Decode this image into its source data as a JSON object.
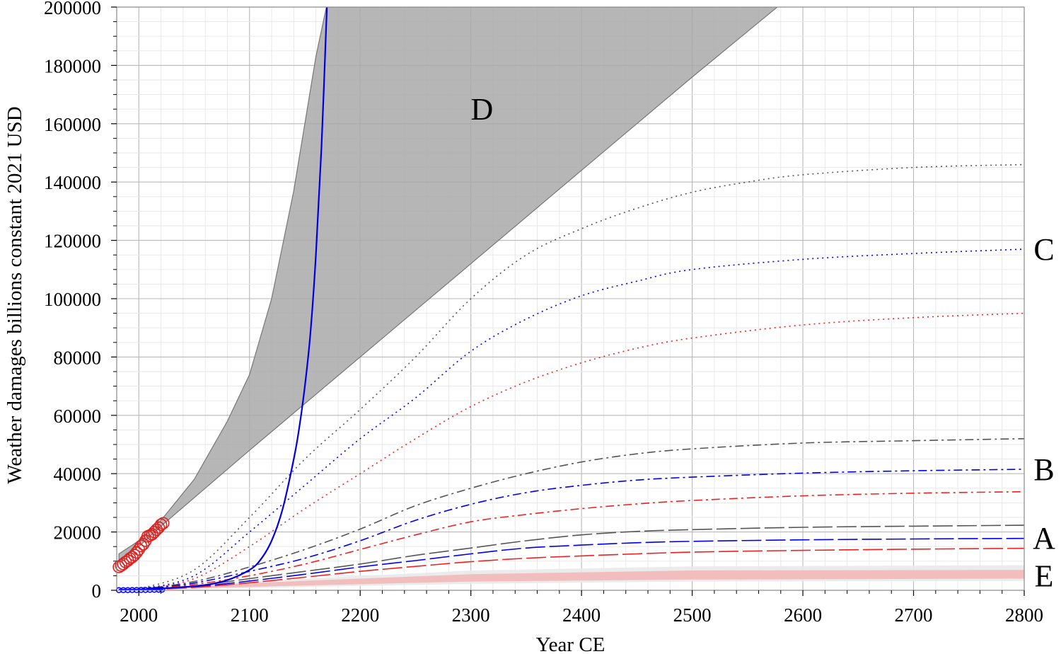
{
  "chart_data": {
    "type": "line",
    "xlabel": "Year CE",
    "ylabel": "Weather damages billions constant 2021 USD",
    "xlim": [
      1980,
      2800
    ],
    "ylim": [
      0,
      200000
    ],
    "x_ticks": [
      2000,
      2100,
      2200,
      2300,
      2400,
      2500,
      2600,
      2700,
      2800
    ],
    "y_ticks": [
      0,
      20000,
      40000,
      60000,
      80000,
      100000,
      120000,
      140000,
      160000,
      180000,
      200000
    ],
    "grid": true,
    "region_labels": [
      {
        "text": "D",
        "x": 2310,
        "y": 165000
      },
      {
        "text": "C",
        "side": "right",
        "y": 117000
      },
      {
        "text": "B",
        "side": "right",
        "y": 41500
      },
      {
        "text": "A",
        "side": "right",
        "y": 18000
      },
      {
        "text": "E",
        "side": "right",
        "y": 5000
      }
    ],
    "bands": [
      {
        "label": "D",
        "color": "#a9a9a9",
        "upper": [
          [
            1982,
            12500
          ],
          [
            2000,
            17000
          ],
          [
            2020,
            24000
          ],
          [
            2050,
            38000
          ],
          [
            2080,
            58000
          ],
          [
            2100,
            74000
          ],
          [
            2120,
            100000
          ],
          [
            2140,
            137000
          ],
          [
            2160,
            183000
          ],
          [
            2170,
            201000
          ]
        ],
        "lower": [
          [
            1982,
            10500
          ],
          [
            2000,
            15000
          ],
          [
            2020,
            22000
          ],
          [
            2100,
            48000
          ],
          [
            2200,
            80000
          ],
          [
            2300,
            112000
          ],
          [
            2400,
            144000
          ],
          [
            2500,
            176000
          ],
          [
            2580,
            201000
          ]
        ]
      },
      {
        "label": "E-outer",
        "color": "#e9e9e9",
        "upper": [
          [
            1982,
            0
          ],
          [
            2100,
            3000
          ],
          [
            2300,
            6800
          ],
          [
            2500,
            8200
          ],
          [
            2800,
            8600
          ]
        ],
        "lower": [
          [
            1982,
            0
          ],
          [
            2100,
            800
          ],
          [
            2300,
            2200
          ],
          [
            2500,
            3000
          ],
          [
            2800,
            3200
          ]
        ]
      },
      {
        "label": "E",
        "color": "#f2b8b8",
        "upper": [
          [
            1982,
            0
          ],
          [
            2100,
            2500
          ],
          [
            2300,
            5500
          ],
          [
            2500,
            6800
          ],
          [
            2800,
            7000
          ]
        ],
        "lower": [
          [
            1982,
            0
          ],
          [
            2100,
            1200
          ],
          [
            2300,
            3000
          ],
          [
            2500,
            3700
          ],
          [
            2800,
            4000
          ]
        ]
      }
    ],
    "series": [
      {
        "color": "#555555",
        "dash": "2,5",
        "points": [
          [
            1982,
            0
          ],
          [
            2000,
            500
          ],
          [
            2050,
            7000
          ],
          [
            2100,
            25000
          ],
          [
            2150,
            45000
          ],
          [
            2200,
            62000
          ],
          [
            2250,
            80000
          ],
          [
            2300,
            100000
          ],
          [
            2350,
            115000
          ],
          [
            2400,
            124000
          ],
          [
            2450,
            131000
          ],
          [
            2500,
            136500
          ],
          [
            2550,
            140000
          ],
          [
            2600,
            142500
          ],
          [
            2700,
            145000
          ],
          [
            2800,
            146000
          ]
        ]
      },
      {
        "color": "#0000ee",
        "dash": "2,5",
        "points": [
          [
            1982,
            0
          ],
          [
            2000,
            400
          ],
          [
            2050,
            5000
          ],
          [
            2100,
            20000
          ],
          [
            2150,
            36000
          ],
          [
            2200,
            52000
          ],
          [
            2250,
            66000
          ],
          [
            2300,
            82000
          ],
          [
            2350,
            93000
          ],
          [
            2400,
            101000
          ],
          [
            2450,
            106000
          ],
          [
            2500,
            110000
          ],
          [
            2600,
            113500
          ],
          [
            2700,
            115500
          ],
          [
            2800,
            117000
          ]
        ]
      },
      {
        "color": "#ee2222",
        "dash": "2,5",
        "points": [
          [
            1982,
            0
          ],
          [
            2000,
            300
          ],
          [
            2050,
            4000
          ],
          [
            2100,
            15000
          ],
          [
            2150,
            28000
          ],
          [
            2200,
            40000
          ],
          [
            2250,
            52000
          ],
          [
            2300,
            63000
          ],
          [
            2350,
            71500
          ],
          [
            2400,
            78000
          ],
          [
            2450,
            83000
          ],
          [
            2500,
            86500
          ],
          [
            2600,
            91000
          ],
          [
            2700,
            93500
          ],
          [
            2800,
            95000
          ]
        ]
      },
      {
        "color": "#555555",
        "dash": "12,5,3,5",
        "points": [
          [
            1982,
            0
          ],
          [
            2000,
            300
          ],
          [
            2050,
            3000
          ],
          [
            2100,
            8000
          ],
          [
            2150,
            14000
          ],
          [
            2200,
            21000
          ],
          [
            2250,
            29000
          ],
          [
            2300,
            35000
          ],
          [
            2350,
            40000
          ],
          [
            2400,
            44000
          ],
          [
            2450,
            46800
          ],
          [
            2500,
            48500
          ],
          [
            2600,
            50500
          ],
          [
            2700,
            51300
          ],
          [
            2800,
            52000
          ]
        ]
      },
      {
        "color": "#0000ee",
        "dash": "12,5,3,5",
        "points": [
          [
            1982,
            0
          ],
          [
            2000,
            250
          ],
          [
            2050,
            2500
          ],
          [
            2100,
            6500
          ],
          [
            2150,
            11000
          ],
          [
            2200,
            17000
          ],
          [
            2250,
            24000
          ],
          [
            2300,
            29500
          ],
          [
            2350,
            33500
          ],
          [
            2400,
            36000
          ],
          [
            2450,
            37800
          ],
          [
            2500,
            38800
          ],
          [
            2600,
            40200
          ],
          [
            2700,
            41000
          ],
          [
            2800,
            41500
          ]
        ]
      },
      {
        "color": "#ee2222",
        "dash": "12,5,3,5",
        "points": [
          [
            1982,
            0
          ],
          [
            2000,
            200
          ],
          [
            2050,
            2000
          ],
          [
            2100,
            5000
          ],
          [
            2150,
            9000
          ],
          [
            2200,
            14000
          ],
          [
            2250,
            19000
          ],
          [
            2300,
            23500
          ],
          [
            2350,
            26000
          ],
          [
            2400,
            28000
          ],
          [
            2450,
            29600
          ],
          [
            2500,
            30800
          ],
          [
            2600,
            32400
          ],
          [
            2700,
            33300
          ],
          [
            2800,
            33800
          ]
        ]
      },
      {
        "color": "#555555",
        "dash": "28,6",
        "points": [
          [
            1982,
            0
          ],
          [
            2000,
            200
          ],
          [
            2050,
            1500
          ],
          [
            2100,
            4000
          ],
          [
            2150,
            6500
          ],
          [
            2200,
            9000
          ],
          [
            2250,
            12000
          ],
          [
            2300,
            14500
          ],
          [
            2350,
            17000
          ],
          [
            2400,
            19000
          ],
          [
            2450,
            20200
          ],
          [
            2500,
            20800
          ],
          [
            2600,
            21600
          ],
          [
            2700,
            22000
          ],
          [
            2800,
            22300
          ]
        ]
      },
      {
        "color": "#0000ee",
        "dash": "28,6",
        "points": [
          [
            1982,
            0
          ],
          [
            2000,
            150
          ],
          [
            2050,
            1200
          ],
          [
            2100,
            3200
          ],
          [
            2150,
            5500
          ],
          [
            2200,
            8000
          ],
          [
            2250,
            10200
          ],
          [
            2300,
            12500
          ],
          [
            2350,
            14500
          ],
          [
            2400,
            15500
          ],
          [
            2450,
            16300
          ],
          [
            2500,
            16800
          ],
          [
            2600,
            17300
          ],
          [
            2700,
            17600
          ],
          [
            2800,
            17800
          ]
        ]
      },
      {
        "color": "#ee2222",
        "dash": "28,6",
        "points": [
          [
            1982,
            0
          ],
          [
            2000,
            120
          ],
          [
            2050,
            1000
          ],
          [
            2100,
            2600
          ],
          [
            2150,
            4500
          ],
          [
            2200,
            6500
          ],
          [
            2250,
            8200
          ],
          [
            2300,
            9800
          ],
          [
            2350,
            11000
          ],
          [
            2400,
            11800
          ],
          [
            2450,
            12500
          ],
          [
            2500,
            13100
          ],
          [
            2600,
            13700
          ],
          [
            2700,
            14100
          ],
          [
            2800,
            14400
          ]
        ]
      },
      {
        "color": "#0000dd",
        "dash": "",
        "width": 2.2,
        "points": [
          [
            1982,
            0
          ],
          [
            2000,
            200
          ],
          [
            2020,
            600
          ],
          [
            2040,
            1100
          ],
          [
            2060,
            1800
          ],
          [
            2080,
            3500
          ],
          [
            2100,
            7000
          ],
          [
            2110,
            10500
          ],
          [
            2120,
            17000
          ],
          [
            2130,
            28000
          ],
          [
            2140,
            45000
          ],
          [
            2145,
            56000
          ],
          [
            2150,
            70000
          ],
          [
            2155,
            88000
          ],
          [
            2160,
            115000
          ],
          [
            2165,
            152000
          ],
          [
            2170,
            201000
          ]
        ]
      }
    ],
    "observations_red_circles": [
      [
        1982,
        8000
      ],
      [
        1984,
        8500
      ],
      [
        1986,
        9000
      ],
      [
        1988,
        9700
      ],
      [
        1990,
        10200
      ],
      [
        1992,
        10900
      ],
      [
        1994,
        11400
      ],
      [
        1996,
        12100
      ],
      [
        1998,
        13000
      ],
      [
        2000,
        14000
      ],
      [
        2002,
        15200
      ],
      [
        2004,
        15800
      ],
      [
        2006,
        17000
      ],
      [
        2008,
        18500
      ],
      [
        2010,
        18800
      ],
      [
        2012,
        19200
      ],
      [
        2014,
        20000
      ],
      [
        2016,
        20800
      ],
      [
        2018,
        21500
      ],
      [
        2020,
        22500
      ],
      [
        2022,
        23000
      ]
    ],
    "observations_blue_markers": [
      [
        1982,
        50
      ],
      [
        1986,
        60
      ],
      [
        1990,
        70
      ],
      [
        1994,
        80
      ],
      [
        1998,
        90
      ],
      [
        2002,
        110
      ],
      [
        2006,
        130
      ],
      [
        2010,
        150
      ],
      [
        2014,
        170
      ],
      [
        2018,
        190
      ],
      [
        2021,
        210
      ]
    ],
    "colors": {
      "gray": "#555555",
      "blue": "#0000ee",
      "red": "#ee2222",
      "band_D": "#a9a9a9",
      "band_E": "#f2b8b8"
    }
  }
}
